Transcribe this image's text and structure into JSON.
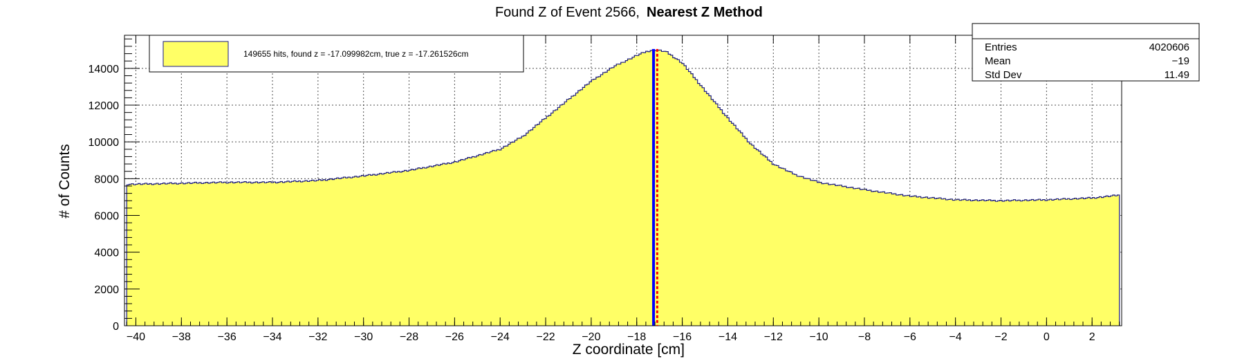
{
  "chart_data": {
    "type": "histogram",
    "title": "Found Z of Event 2566,",
    "title_bold": "Nearest Z Method",
    "xlabel": "Z coordinate [cm]",
    "ylabel": "# of Counts",
    "xlim": [
      -40.5,
      3.3
    ],
    "ylim": [
      0,
      15800
    ],
    "grid": true,
    "x_ticks": [
      -40,
      -38,
      -36,
      -34,
      -32,
      -30,
      -28,
      -26,
      -24,
      -22,
      -20,
      -18,
      -16,
      -14,
      -12,
      -10,
      -8,
      -6,
      -4,
      -2,
      0,
      2
    ],
    "y_ticks": [
      0,
      2000,
      4000,
      6000,
      8000,
      10000,
      12000,
      14000
    ],
    "x_tick_labels": [
      "−40",
      "−38",
      "−36",
      "−34",
      "−32",
      "−30",
      "−28",
      "−26",
      "−24",
      "−22",
      "−20",
      "−18",
      "−16",
      "−14",
      "−12",
      "−10",
      "−8",
      "−6",
      "−4",
      "−2",
      "0",
      "2"
    ],
    "y_tick_labels": [
      "0",
      "2000",
      "4000",
      "6000",
      "8000",
      "10000",
      "12000",
      "14000"
    ],
    "fill_color": "#ffff66",
    "line_color": "#1a1a80",
    "envelope": {
      "x": [
        -40.4,
        -40,
        -38,
        -36,
        -34,
        -32,
        -30,
        -28,
        -26,
        -24,
        -23,
        -22,
        -21,
        -20,
        -19,
        -18,
        -17.6,
        -17.3,
        -17.1,
        -16.7,
        -16,
        -15,
        -14,
        -13,
        -12,
        -11,
        -10,
        -9,
        -8,
        -6,
        -4,
        -2,
        0,
        2,
        3.2
      ],
      "y": [
        7700,
        7700,
        7750,
        7800,
        7800,
        7900,
        8150,
        8450,
        8900,
        9600,
        10300,
        11300,
        12300,
        13300,
        14100,
        14700,
        14900,
        15000,
        15000,
        14900,
        14300,
        12800,
        11300,
        9900,
        8800,
        8200,
        7800,
        7600,
        7400,
        7050,
        6850,
        6800,
        6850,
        6950,
        7100
      ]
    },
    "found_z": -17.099982,
    "true_z": -17.261526,
    "found_z_color": "#0000ff",
    "true_z_color": "#ff0000",
    "legend": {
      "entry": "149655 hits, found z = -17.099982cm, true z = -17.261526cm",
      "placement": "top-left"
    },
    "stats": {
      "rows": [
        {
          "label": "Entries",
          "value": "4020606"
        },
        {
          "label": "Mean",
          "value": "−19"
        },
        {
          "label": "Std Dev",
          "value": "11.49"
        }
      ]
    }
  }
}
